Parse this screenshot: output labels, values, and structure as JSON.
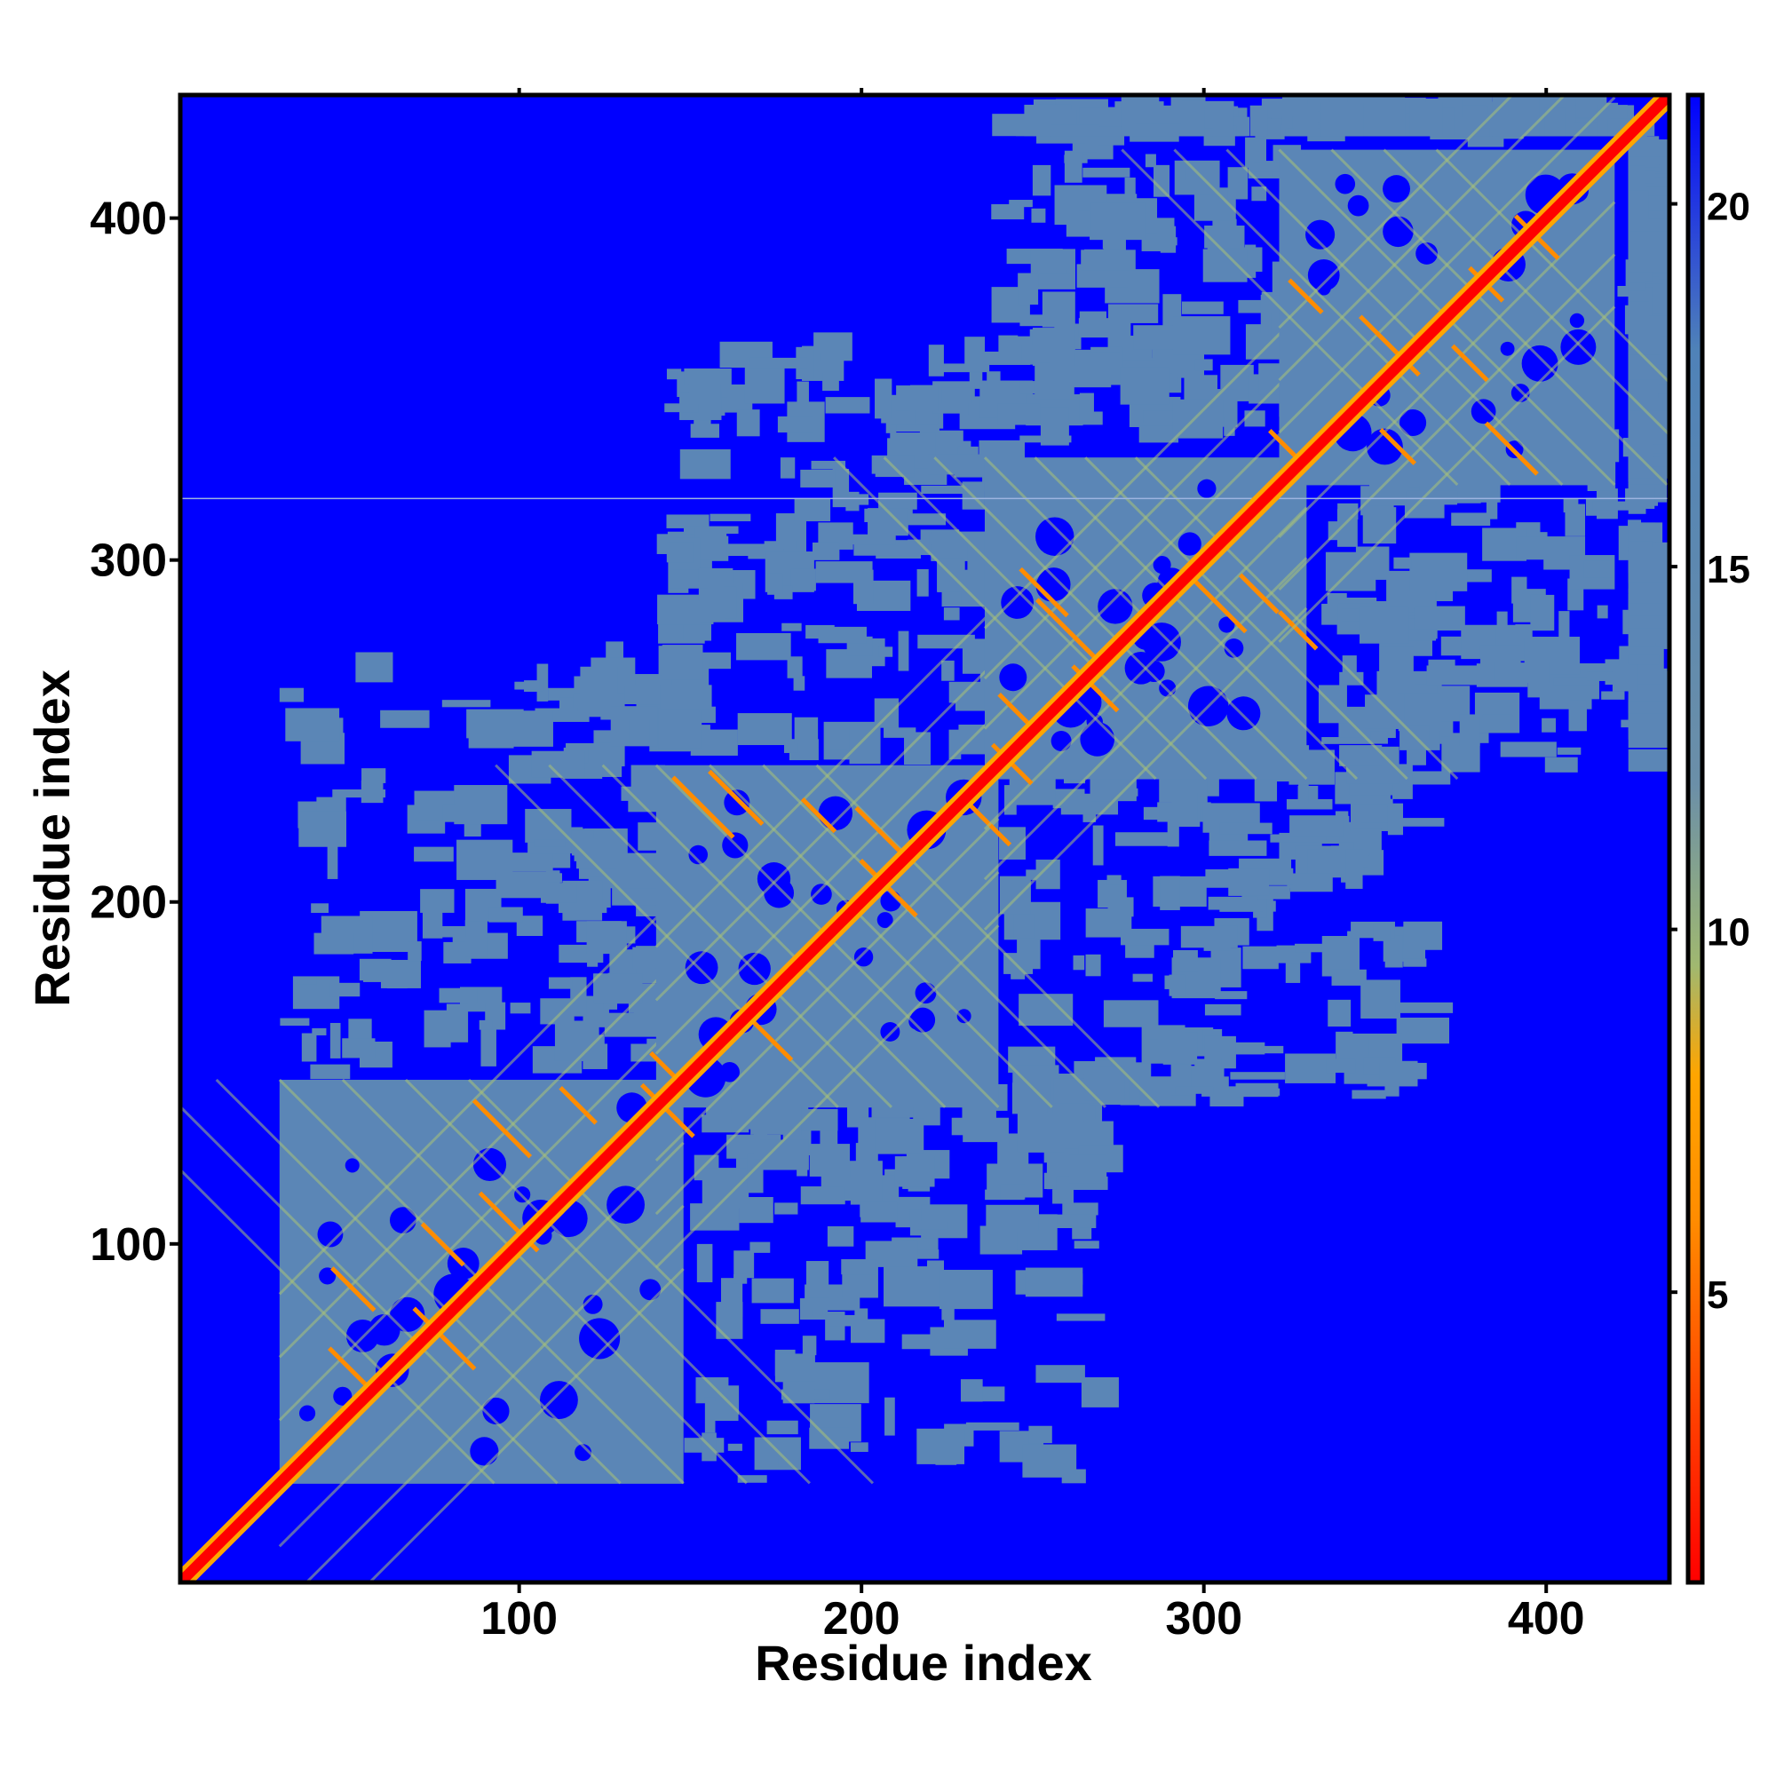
{
  "chart_data": {
    "type": "heatmap",
    "title": "",
    "xlabel": "Residue index",
    "ylabel": "Residue index",
    "xlim": [
      1,
      436
    ],
    "ylim": [
      1,
      436
    ],
    "x_ticks": [
      100,
      200,
      300,
      400
    ],
    "y_ticks": [
      100,
      200,
      300,
      400
    ],
    "colorbar": {
      "ticks": [
        5,
        10,
        15,
        20
      ],
      "range": [
        1,
        21.5
      ],
      "colors": [
        {
          "value": 1,
          "color": "#ff0000"
        },
        {
          "value": 6,
          "color": "#ff8c00"
        },
        {
          "value": 8,
          "color": "#ffa500"
        },
        {
          "value": 9.5,
          "color": "#a0b870"
        },
        {
          "value": 12,
          "color": "#6b8fa8"
        },
        {
          "value": 18,
          "color": "#4f82b8"
        },
        {
          "value": 21.5,
          "color": "#0000ff"
        }
      ]
    },
    "background_color": "#0000ff",
    "diagonal_color": "#ff0000",
    "domains": [
      {
        "start": 30,
        "end": 148
      },
      {
        "start": 140,
        "end": 240
      },
      {
        "start": 236,
        "end": 330
      },
      {
        "start": 322,
        "end": 420
      }
    ],
    "grid": false
  }
}
